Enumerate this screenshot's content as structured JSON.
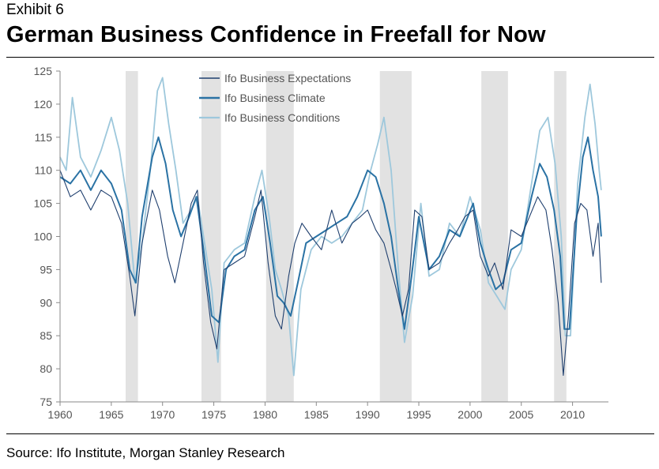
{
  "header": {
    "exhibit": "Exhibit 6",
    "title": "German Business Confidence in Freefall for Now"
  },
  "footer": {
    "source": "Source: Ifo Institute, Morgan Stanley Research"
  },
  "colors": {
    "expectations": "#1f3f6e",
    "climate": "#2a72a4",
    "conditions": "#9ec8dc",
    "recession": "#e2e2e2",
    "axis": "#8a8a8a",
    "tick_text": "#555555"
  },
  "chart_data": {
    "type": "line",
    "title": "German Business Confidence in Freefall for Now",
    "xlabel": "",
    "ylabel": "",
    "xlim": [
      1960,
      2013.5
    ],
    "ylim": [
      75,
      125
    ],
    "x_ticks": [
      1960,
      1965,
      1970,
      1975,
      1980,
      1985,
      1990,
      1995,
      2000,
      2005,
      2010
    ],
    "y_ticks": [
      75,
      80,
      85,
      90,
      95,
      100,
      105,
      110,
      115,
      120,
      125
    ],
    "legend_position": "top-center",
    "recession_bands": [
      {
        "start": 1966.4,
        "end": 1967.6
      },
      {
        "start": 1973.8,
        "end": 1975.7
      },
      {
        "start": 1980.1,
        "end": 1982.8
      },
      {
        "start": 1991.2,
        "end": 1994.3
      },
      {
        "start": 2001.1,
        "end": 2003.7
      },
      {
        "start": 2008.2,
        "end": 2009.4
      }
    ],
    "series": [
      {
        "name": "Ifo Business Expectations",
        "x": [
          1960,
          1961,
          1962,
          1963,
          1964,
          1965,
          1966,
          1966.8,
          1967.3,
          1968,
          1969,
          1969.7,
          1970.5,
          1971.2,
          1972,
          1972.8,
          1973.4,
          1974,
          1974.7,
          1975.3,
          1976,
          1977,
          1978,
          1979,
          1979.6,
          1980.3,
          1981,
          1981.6,
          1982.3,
          1982.9,
          1983.6,
          1984.5,
          1985.5,
          1986.5,
          1987.5,
          1988.5,
          1989.3,
          1990,
          1990.8,
          1991.6,
          1992.3,
          1992.8,
          1993.4,
          1994,
          1994.6,
          1995.3,
          1996,
          1997,
          1998,
          1998.8,
          1999.5,
          2000.3,
          2001,
          2001.8,
          2002.4,
          2003.2,
          2004,
          2005,
          2005.8,
          2006.6,
          2007.4,
          2008,
          2008.6,
          2009.1,
          2009.6,
          2010.2,
          2010.8,
          2011.4,
          2012,
          2012.5,
          2012.8
        ],
        "values": [
          110,
          106,
          107,
          104,
          107,
          106,
          102,
          94,
          88,
          99,
          107,
          104,
          97,
          93,
          99,
          105,
          107,
          96,
          87,
          83,
          95,
          96,
          97,
          103,
          107,
          96,
          88,
          86,
          94,
          99,
          102,
          100,
          98,
          104,
          99,
          102,
          103,
          104,
          101,
          99,
          95,
          92,
          88,
          92,
          104,
          103,
          95,
          96,
          99,
          101,
          103,
          104,
          97,
          94,
          96,
          92,
          101,
          100,
          103,
          106,
          104,
          98,
          90,
          79,
          88,
          102,
          105,
          104,
          97,
          102,
          93
        ]
      },
      {
        "name": "Ifo Business Climate",
        "x": [
          1960,
          1961,
          1962,
          1963,
          1964,
          1965,
          1966,
          1966.8,
          1967.4,
          1968,
          1969,
          1969.6,
          1970.3,
          1971,
          1971.8,
          1972.6,
          1973.3,
          1974,
          1974.8,
          1975.5,
          1976.2,
          1977,
          1978,
          1979,
          1979.8,
          1980.5,
          1981.2,
          1981.8,
          1982.5,
          1983.2,
          1984,
          1985,
          1986,
          1987,
          1988,
          1989,
          1990,
          1990.8,
          1991.6,
          1992.3,
          1993,
          1993.6,
          1994.3,
          1995,
          1996,
          1997,
          1998,
          1999,
          2000.3,
          2001,
          2001.8,
          2002.5,
          2003.2,
          2004,
          2005,
          2006,
          2006.8,
          2007.5,
          2008.2,
          2008.8,
          2009.2,
          2009.7,
          2010.4,
          2011,
          2011.5,
          2012,
          2012.5,
          2012.8
        ],
        "values": [
          109,
          108,
          110,
          107,
          110,
          108,
          104,
          95,
          93,
          103,
          112,
          115,
          111,
          104,
          100,
          103,
          106,
          98,
          88,
          87,
          95,
          97,
          98,
          104,
          106,
          99,
          91,
          90,
          88,
          93,
          99,
          100,
          101,
          102,
          103,
          106,
          110,
          109,
          105,
          100,
          92,
          86,
          94,
          103,
          95,
          97,
          101,
          100,
          105,
          99,
          95,
          92,
          93,
          98,
          99,
          106,
          111,
          109,
          104,
          97,
          86,
          86,
          103,
          112,
          115,
          110,
          106,
          100
        ]
      },
      {
        "name": "Ifo Business Conditions",
        "x": [
          1960,
          1960.6,
          1961.2,
          1962,
          1963,
          1964,
          1965,
          1965.8,
          1966.6,
          1967.3,
          1968,
          1968.8,
          1969.5,
          1970,
          1970.6,
          1971.3,
          1972,
          1972.8,
          1973.4,
          1974,
          1974.8,
          1975.4,
          1976,
          1977,
          1978,
          1979,
          1979.7,
          1980.4,
          1981,
          1981.6,
          1982.3,
          1982.8,
          1983.5,
          1984.5,
          1985.5,
          1986.5,
          1987.5,
          1988.5,
          1989.5,
          1990.3,
          1991,
          1991.6,
          1992.3,
          1993,
          1993.6,
          1994.4,
          1995.2,
          1996,
          1997,
          1998,
          1999,
          2000,
          2001,
          2001.8,
          2002.6,
          2003.4,
          2004,
          2005,
          2006,
          2006.8,
          2007.6,
          2008.3,
          2008.9,
          2009.3,
          2009.8,
          2010.5,
          2011.2,
          2011.7,
          2012.2,
          2012.6,
          2012.8
        ],
        "values": [
          112,
          110,
          121,
          112,
          109,
          113,
          118,
          113,
          105,
          93,
          99,
          110,
          122,
          124,
          117,
          110,
          102,
          104,
          106,
          100,
          92,
          81,
          96,
          98,
          99,
          106,
          110,
          103,
          95,
          92,
          88,
          79,
          92,
          98,
          100,
          99,
          100,
          102,
          104,
          110,
          114,
          118,
          110,
          95,
          84,
          91,
          105,
          94,
          95,
          102,
          100,
          106,
          101,
          93,
          91,
          89,
          95,
          98,
          108,
          116,
          118,
          111,
          100,
          85,
          85,
          108,
          118,
          123,
          117,
          110,
          107
        ]
      }
    ]
  }
}
